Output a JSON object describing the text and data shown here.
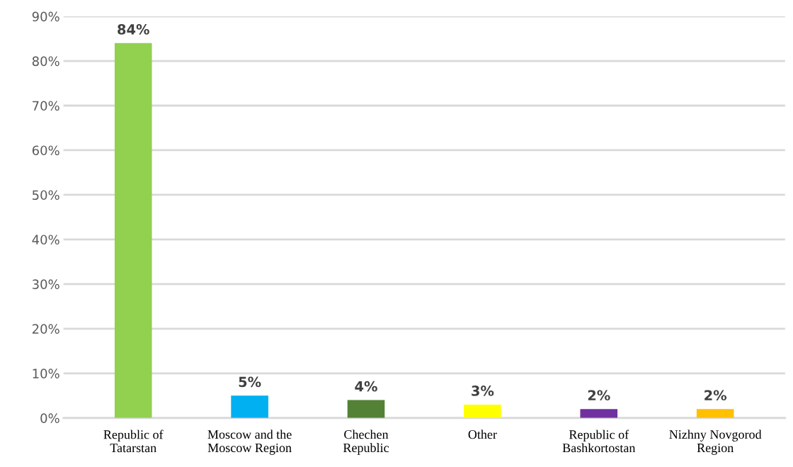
{
  "chart_data": {
    "type": "bar",
    "categories": [
      "Republic of\nTatarstan",
      "Moscow and the\nMoscow Region",
      "Chechen\nRepublic",
      "Other",
      "Republic of\nBashkortostan",
      "Nizhny Novgorod\nRegion"
    ],
    "values": [
      84,
      5,
      4,
      3,
      2,
      2
    ],
    "colors": [
      "#92d050",
      "#00b0f0",
      "#538135",
      "#ffff00",
      "#7030a0",
      "#ffc000"
    ],
    "value_labels": [
      "84%",
      "5%",
      "4%",
      "3%",
      "2%",
      "2%"
    ],
    "ylim": [
      0,
      90
    ],
    "yticks": [
      {
        "value": 0,
        "label": "0%"
      },
      {
        "value": 10,
        "label": "10%"
      },
      {
        "value": 20,
        "label": "20%"
      },
      {
        "value": 30,
        "label": "30%"
      },
      {
        "value": 40,
        "label": "40%"
      },
      {
        "value": 50,
        "label": "50%"
      },
      {
        "value": 60,
        "label": "60%"
      },
      {
        "value": 70,
        "label": "70%"
      },
      {
        "value": 80,
        "label": "80%"
      },
      {
        "value": 90,
        "label": "90%"
      }
    ],
    "grid": "y"
  }
}
